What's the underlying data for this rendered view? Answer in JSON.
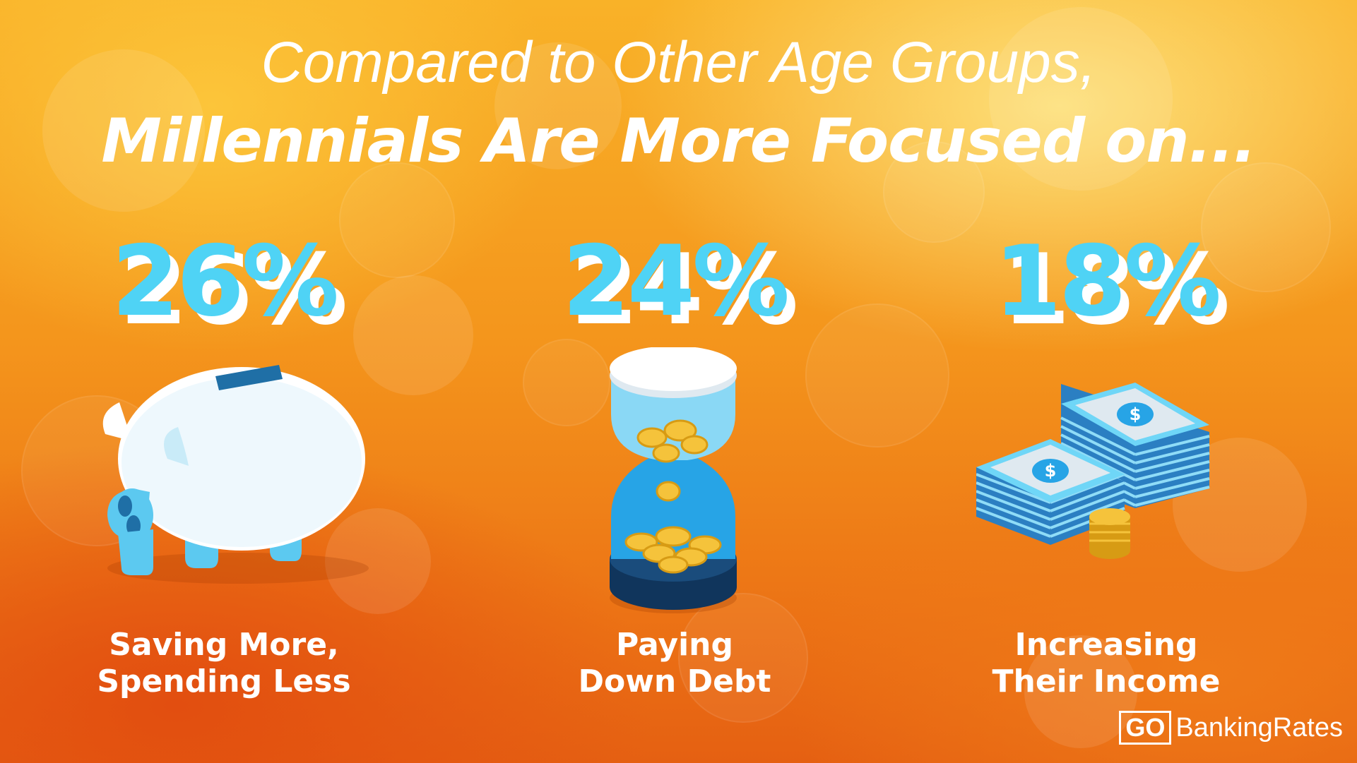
{
  "title": {
    "line1": "Compared to Other Age Groups,",
    "line2": "Millennials Are More Focused on..."
  },
  "items": [
    {
      "percent": "26%",
      "label_line1": "Saving More,",
      "label_line2": "Spending Less",
      "icon": "piggy-bank-icon"
    },
    {
      "percent": "24%",
      "label_line1": "Paying",
      "label_line2": "Down Debt",
      "icon": "hourglass-coins-icon"
    },
    {
      "percent": "18%",
      "label_line1": "Increasing",
      "label_line2": "Their Income",
      "icon": "money-stack-icon"
    }
  ],
  "logo": {
    "go": "GO",
    "rest": "BankingRates"
  },
  "colors": {
    "percent_fill": "#4fd3f5",
    "percent_shadow": "#ffffff",
    "background_top": "#f9b228",
    "background_bottom": "#e56012"
  }
}
